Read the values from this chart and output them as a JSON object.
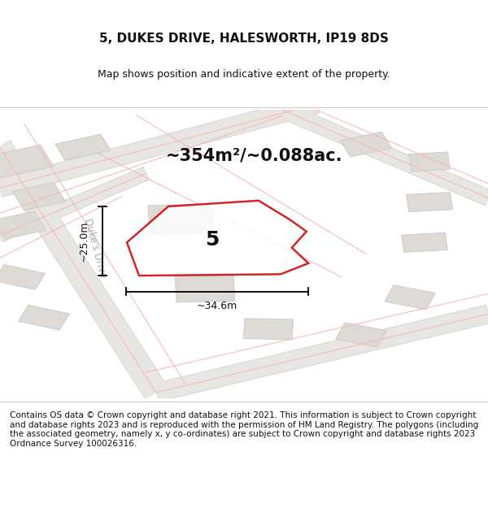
{
  "title": "5, DUKES DRIVE, HALESWORTH, IP19 8DS",
  "subtitle": "Map shows position and indicative extent of the property.",
  "area_label": "~354m²/~0.088ac.",
  "property_number": "5",
  "width_label": "~34.6m",
  "height_label": "~25.0m",
  "street_label": "Duke's Drive",
  "bg_color": "#ffffff",
  "map_bg": "#f2f1ef",
  "footer_text": "Contains OS data © Crown copyright and database right 2021. This information is subject to Crown copyright and database rights 2023 and is reproduced with the permission of HM Land Registry. The polygons (including the associated geometry, namely x, y co-ordinates) are subject to Crown copyright and database rights 2023 Ordnance Survey 100026316.",
  "road_fill": "#e8e6e2",
  "road_edge": "#d0cdc8",
  "building_fill": "#dedad5",
  "building_edge": "#ccc9c4",
  "pink_line": "#f4b8b8",
  "red_line": "#cc0000",
  "annotation_color": "#111111",
  "street_text_color": "#b0aba4",
  "title_fontsize": 11,
  "subtitle_fontsize": 9,
  "area_fontsize": 15,
  "number_fontsize": 18,
  "dim_fontsize": 9,
  "footer_fontsize": 7.5
}
